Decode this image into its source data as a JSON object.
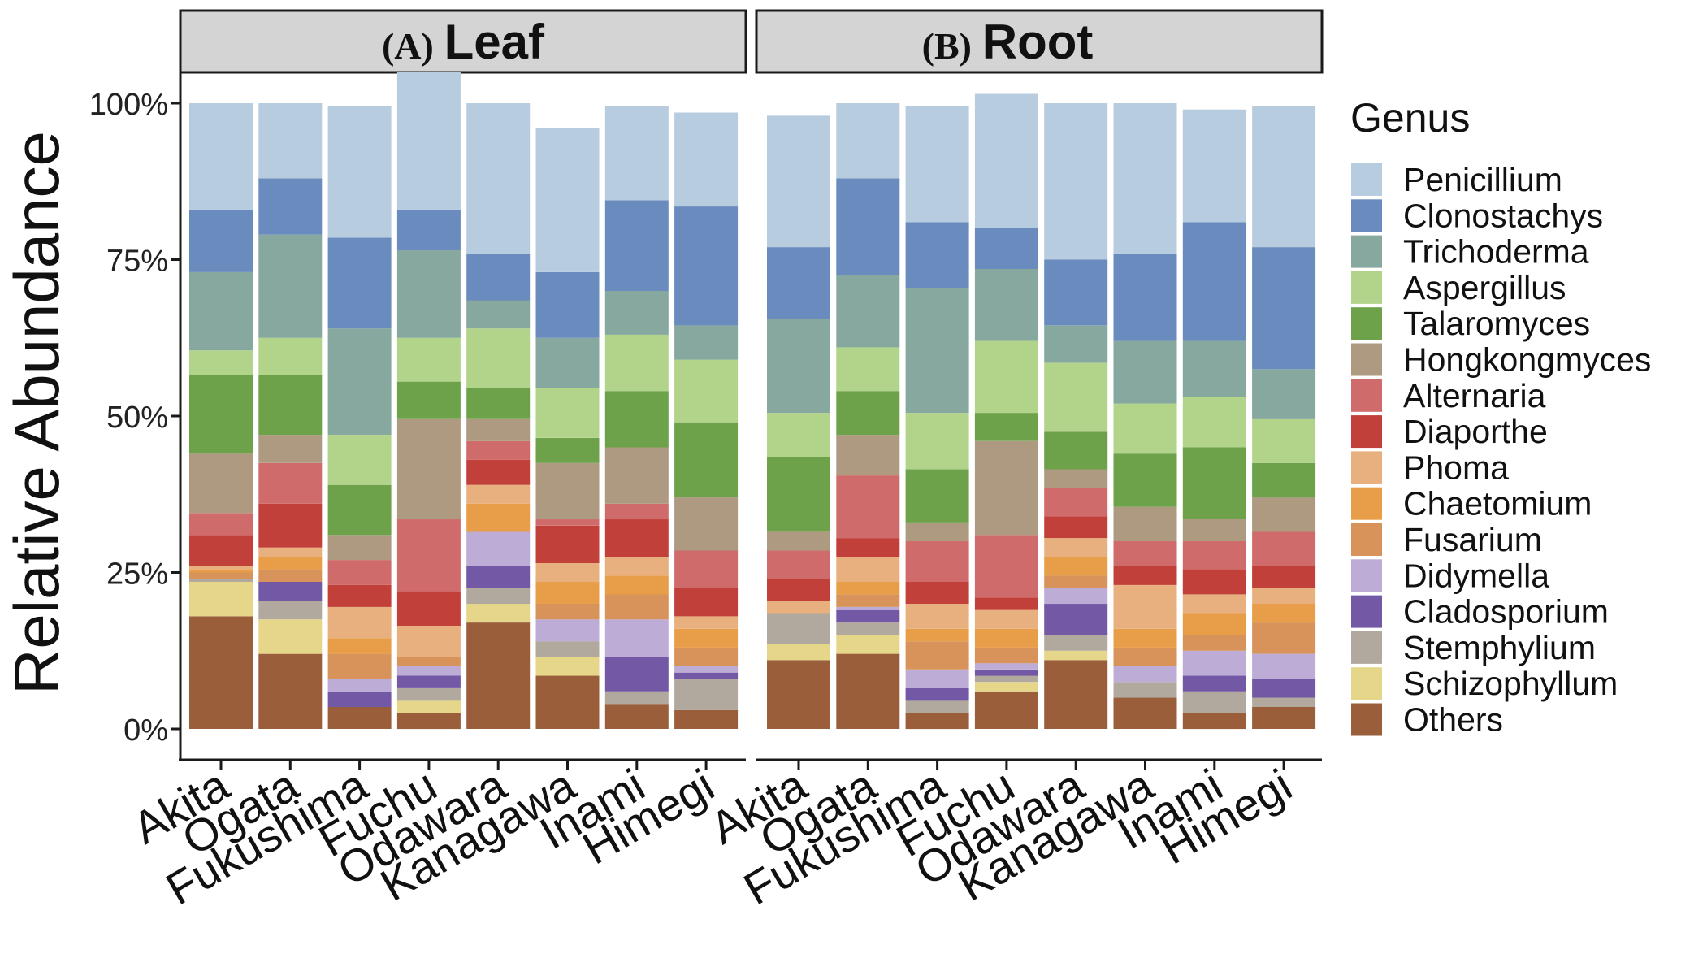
{
  "chart_data": {
    "type": "bar",
    "stacked": true,
    "normalized": true,
    "ylabel": "Relative Abundance",
    "xlabel": "",
    "ylim": [
      0,
      100
    ],
    "y_ticks": [
      "0%",
      "25%",
      "50%",
      "75%",
      "100%"
    ],
    "legend_title": "Genus",
    "legend_position": "right",
    "categories": [
      "Akita",
      "Ogata",
      "Fukushima",
      "Fuchu",
      "Odawara",
      "Kanagawa",
      "Inami",
      "Himegi"
    ],
    "genera": [
      {
        "name": "Penicillium",
        "color": "#B8CCE0"
      },
      {
        "name": "Clonostachys",
        "color": "#6A8BBD"
      },
      {
        "name": "Trichoderma",
        "color": "#86A89E"
      },
      {
        "name": "Aspergillus",
        "color": "#B2D48A"
      },
      {
        "name": "Talaromyces",
        "color": "#6DA24A"
      },
      {
        "name": "Hongkongmyces",
        "color": "#AD9A80"
      },
      {
        "name": "Alternaria",
        "color": "#CF6B6B"
      },
      {
        "name": "Diaporthe",
        "color": "#C2403A"
      },
      {
        "name": "Phoma",
        "color": "#E8B07E"
      },
      {
        "name": "Chaetomium",
        "color": "#E89E48"
      },
      {
        "name": "Fusarium",
        "color": "#D8935A"
      },
      {
        "name": "Didymella",
        "color": "#BDACD6"
      },
      {
        "name": "Cladosporium",
        "color": "#7358A6"
      },
      {
        "name": "Stemphylium",
        "color": "#B2A99E"
      },
      {
        "name": "Schizophyllum",
        "color": "#E6D68A"
      },
      {
        "name": "Others",
        "color": "#9A5E3A"
      }
    ],
    "panels": [
      {
        "label_prefix": "(A)",
        "label_name": "Leaf",
        "series": [
          {
            "name": "Others",
            "values": [
              18,
              12,
              3.5,
              2.5,
              17,
              8.5,
              4,
              3
            ]
          },
          {
            "name": "Schizophyllum",
            "values": [
              5.5,
              5.5,
              0,
              2,
              3,
              3,
              0,
              0
            ]
          },
          {
            "name": "Stemphylium",
            "values": [
              0.5,
              3,
              0,
              2,
              2.5,
              2.5,
              2,
              5
            ]
          },
          {
            "name": "Cladosporium",
            "values": [
              0,
              3,
              2.5,
              2,
              3.5,
              0,
              5.5,
              1
            ]
          },
          {
            "name": "Didymella",
            "values": [
              0,
              0,
              2,
              1.5,
              5.5,
              3.5,
              6,
              1
            ]
          },
          {
            "name": "Fusarium",
            "values": [
              1,
              2,
              4,
              1.5,
              0,
              2.5,
              4,
              3
            ]
          },
          {
            "name": "Chaetomium",
            "values": [
              0.5,
              2,
              2.5,
              0,
              4.5,
              3.5,
              3,
              3
            ]
          },
          {
            "name": "Phoma",
            "values": [
              0.5,
              1.5,
              5,
              5,
              3,
              3,
              3,
              2
            ]
          },
          {
            "name": "Diaporthe",
            "values": [
              5,
              7,
              3.5,
              5.5,
              4,
              6,
              6,
              4.5
            ]
          },
          {
            "name": "Alternaria",
            "values": [
              3.5,
              6.5,
              4,
              11.5,
              3,
              1,
              2.5,
              6
            ]
          },
          {
            "name": "Hongkongmyces",
            "values": [
              9.5,
              4.5,
              4,
              16,
              3.5,
              9,
              9,
              8.5
            ]
          },
          {
            "name": "Talaromyces",
            "values": [
              12.5,
              9.5,
              8,
              6,
              5,
              4,
              9,
              12
            ]
          },
          {
            "name": "Aspergillus",
            "values": [
              4,
              6,
              8,
              7,
              9.5,
              8,
              9,
              10
            ]
          },
          {
            "name": "Trichoderma",
            "values": [
              12.5,
              16.5,
              17,
              14,
              4.5,
              8,
              7,
              5.5
            ]
          },
          {
            "name": "Clonostachys",
            "values": [
              10,
              9,
              14.5,
              6.5,
              7.5,
              10.5,
              14.5,
              19
            ]
          },
          {
            "name": "Penicillium",
            "values": [
              17,
              12,
              21,
              22,
              24,
              23,
              15,
              15
            ]
          }
        ]
      },
      {
        "label_prefix": "(B)",
        "label_name": "Root",
        "series": [
          {
            "name": "Others",
            "values": [
              11,
              12,
              2.5,
              6,
              11,
              5,
              2.5,
              3.5
            ]
          },
          {
            "name": "Schizophyllum",
            "values": [
              2.5,
              3,
              0,
              1.5,
              1.5,
              0,
              0,
              0
            ]
          },
          {
            "name": "Stemphylium",
            "values": [
              5,
              2,
              2,
              1,
              2.5,
              2.5,
              3.5,
              1.5
            ]
          },
          {
            "name": "Cladosporium",
            "values": [
              0,
              2,
              2,
              1,
              5,
              0,
              2.5,
              3
            ]
          },
          {
            "name": "Didymella",
            "values": [
              0,
              0.5,
              3,
              1,
              2.5,
              2.5,
              4,
              4
            ]
          },
          {
            "name": "Fusarium",
            "values": [
              0,
              2,
              4.5,
              2.5,
              2,
              3,
              2.5,
              5
            ]
          },
          {
            "name": "Chaetomium",
            "values": [
              0,
              2,
              2,
              3,
              3,
              3,
              3.5,
              3
            ]
          },
          {
            "name": "Phoma",
            "values": [
              2,
              4,
              4,
              3,
              3,
              7,
              3,
              2.5
            ]
          },
          {
            "name": "Diaporthe",
            "values": [
              3.5,
              3,
              3.5,
              2,
              3.5,
              3,
              4,
              3.5
            ]
          },
          {
            "name": "Alternaria",
            "values": [
              4.5,
              10,
              6.5,
              10,
              4.5,
              4,
              4.5,
              5.5
            ]
          },
          {
            "name": "Hongkongmyces",
            "values": [
              3,
              6.5,
              3,
              15,
              3,
              5.5,
              3.5,
              5.5
            ]
          },
          {
            "name": "Talaromyces",
            "values": [
              12,
              7,
              8.5,
              4.5,
              6,
              8.5,
              11.5,
              5.5
            ]
          },
          {
            "name": "Aspergillus",
            "values": [
              7,
              7,
              9,
              11.5,
              11,
              8,
              8,
              7
            ]
          },
          {
            "name": "Trichoderma",
            "values": [
              15,
              11.5,
              20,
              11.5,
              6,
              10,
              9,
              8
            ]
          },
          {
            "name": "Clonostachys",
            "values": [
              11.5,
              15.5,
              10.5,
              6.5,
              10.5,
              14,
              19,
              19.5
            ]
          },
          {
            "name": "Penicillium",
            "values": [
              21,
              12,
              18.5,
              21.5,
              25,
              24,
              18,
              22.5
            ]
          }
        ]
      }
    ]
  }
}
